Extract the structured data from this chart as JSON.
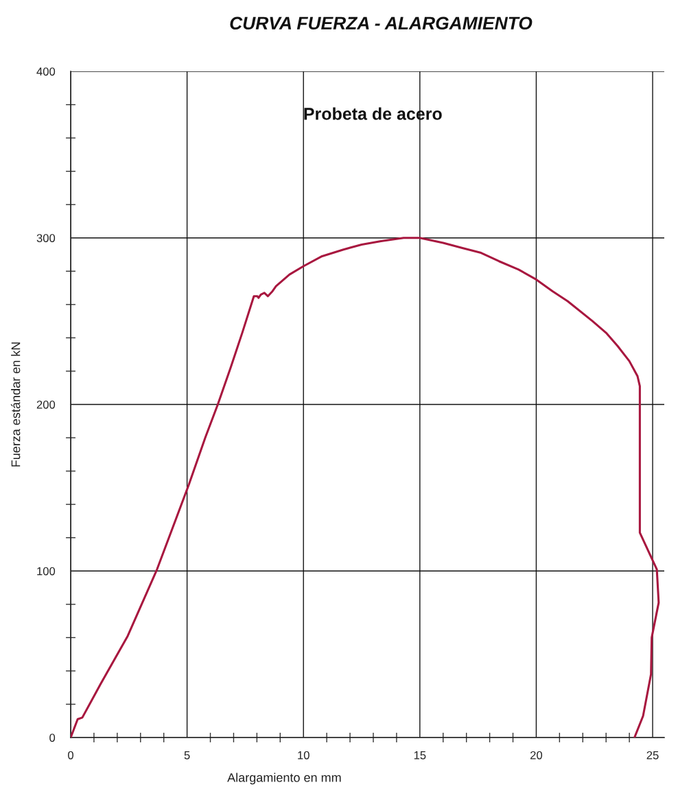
{
  "chart_data": {
    "type": "line",
    "title": "CURVA FUERZA - ALARGAMIENTO",
    "subtitle": "Probeta de acero",
    "xlabel": "Alargamiento en mm",
    "ylabel": "Fuerza estándar en kN",
    "xlim": [
      0,
      25.5
    ],
    "ylim": [
      0,
      400
    ],
    "xticks": [
      0,
      {
        "value": 1,
        "label": null
      },
      {
        "value": 2,
        "label": null
      },
      {
        "value": 3,
        "label": null
      },
      {
        "value": 4,
        "label": null
      },
      5,
      {
        "value": 6,
        "label": null
      },
      {
        "value": 7,
        "label": null
      },
      {
        "value": 8,
        "label": null
      },
      {
        "value": 9,
        "label": null
      },
      10,
      {
        "value": 11,
        "label": null
      },
      {
        "value": 12,
        "label": null
      },
      {
        "value": 13,
        "label": null
      },
      {
        "value": 14,
        "label": null
      },
      15,
      {
        "value": 16,
        "label": null
      },
      {
        "value": 17,
        "label": null
      },
      {
        "value": 18,
        "label": null
      },
      {
        "value": 19,
        "label": null
      },
      20,
      {
        "value": 21,
        "label": null
      },
      {
        "value": 22,
        "label": null
      },
      {
        "value": 23,
        "label": null
      },
      {
        "value": 24,
        "label": null
      },
      25
    ],
    "yticks": [
      0,
      {
        "value": 20,
        "label": null
      },
      {
        "value": 40,
        "label": null
      },
      {
        "value": 60,
        "label": null
      },
      {
        "value": 80,
        "label": null
      },
      100,
      {
        "value": 120,
        "label": null
      },
      {
        "value": 140,
        "label": null
      },
      {
        "value": 160,
        "label": null
      },
      {
        "value": 180,
        "label": null
      },
      200,
      {
        "value": 220,
        "label": null
      },
      {
        "value": 240,
        "label": null
      },
      {
        "value": 260,
        "label": null
      },
      {
        "value": 280,
        "label": null
      },
      300,
      {
        "value": 320,
        "label": null
      },
      {
        "value": 340,
        "label": null
      },
      {
        "value": 360,
        "label": null
      },
      {
        "value": 380,
        "label": null
      },
      400
    ],
    "grid": true,
    "series": [
      {
        "color": "#a8173f",
        "x": [
          0,
          0.3,
          0.5,
          1.28,
          2.45,
          3.71,
          5.08,
          5.78,
          6.32,
          6.87,
          7.37,
          7.87,
          8.02,
          8.07,
          8.17,
          8.32,
          8.47,
          8.67,
          8.82,
          9.4,
          10.0,
          10.8,
          11.72,
          12.5,
          13.33,
          14.3,
          15.0,
          16.0,
          16.8,
          17.63,
          18.4,
          19.24,
          20.0,
          20.7,
          21.35,
          22.42,
          23.0,
          23.5,
          24.0,
          24.35,
          24.45,
          24.45,
          25.18,
          25.26,
          24.96,
          24.93,
          24.59,
          24.22
        ],
        "values": [
          0,
          11,
          12,
          32,
          61,
          101,
          152,
          180,
          200,
          222,
          243,
          265,
          265,
          264,
          266,
          267,
          265,
          268,
          271,
          278,
          283,
          289,
          293,
          296,
          298,
          300,
          300,
          297,
          294,
          291,
          286,
          281,
          275,
          268,
          262,
          250,
          243,
          235,
          226,
          217,
          211,
          123,
          101,
          81,
          60,
          38,
          13,
          0
        ]
      }
    ]
  }
}
